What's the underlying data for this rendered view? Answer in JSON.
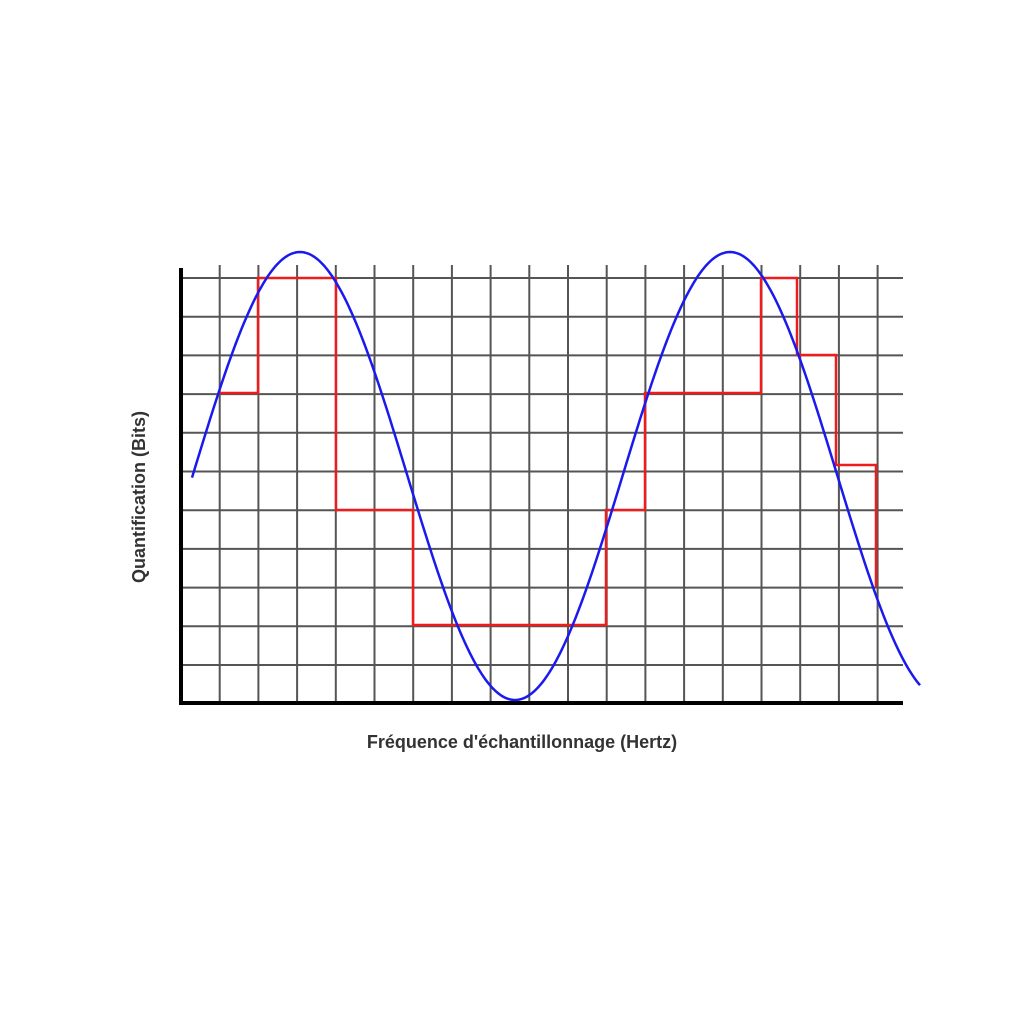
{
  "x_axis_label": "Fréquence d'échantillonnage (Hertz)",
  "y_axis_label": "Quantification (Bits)"
}
